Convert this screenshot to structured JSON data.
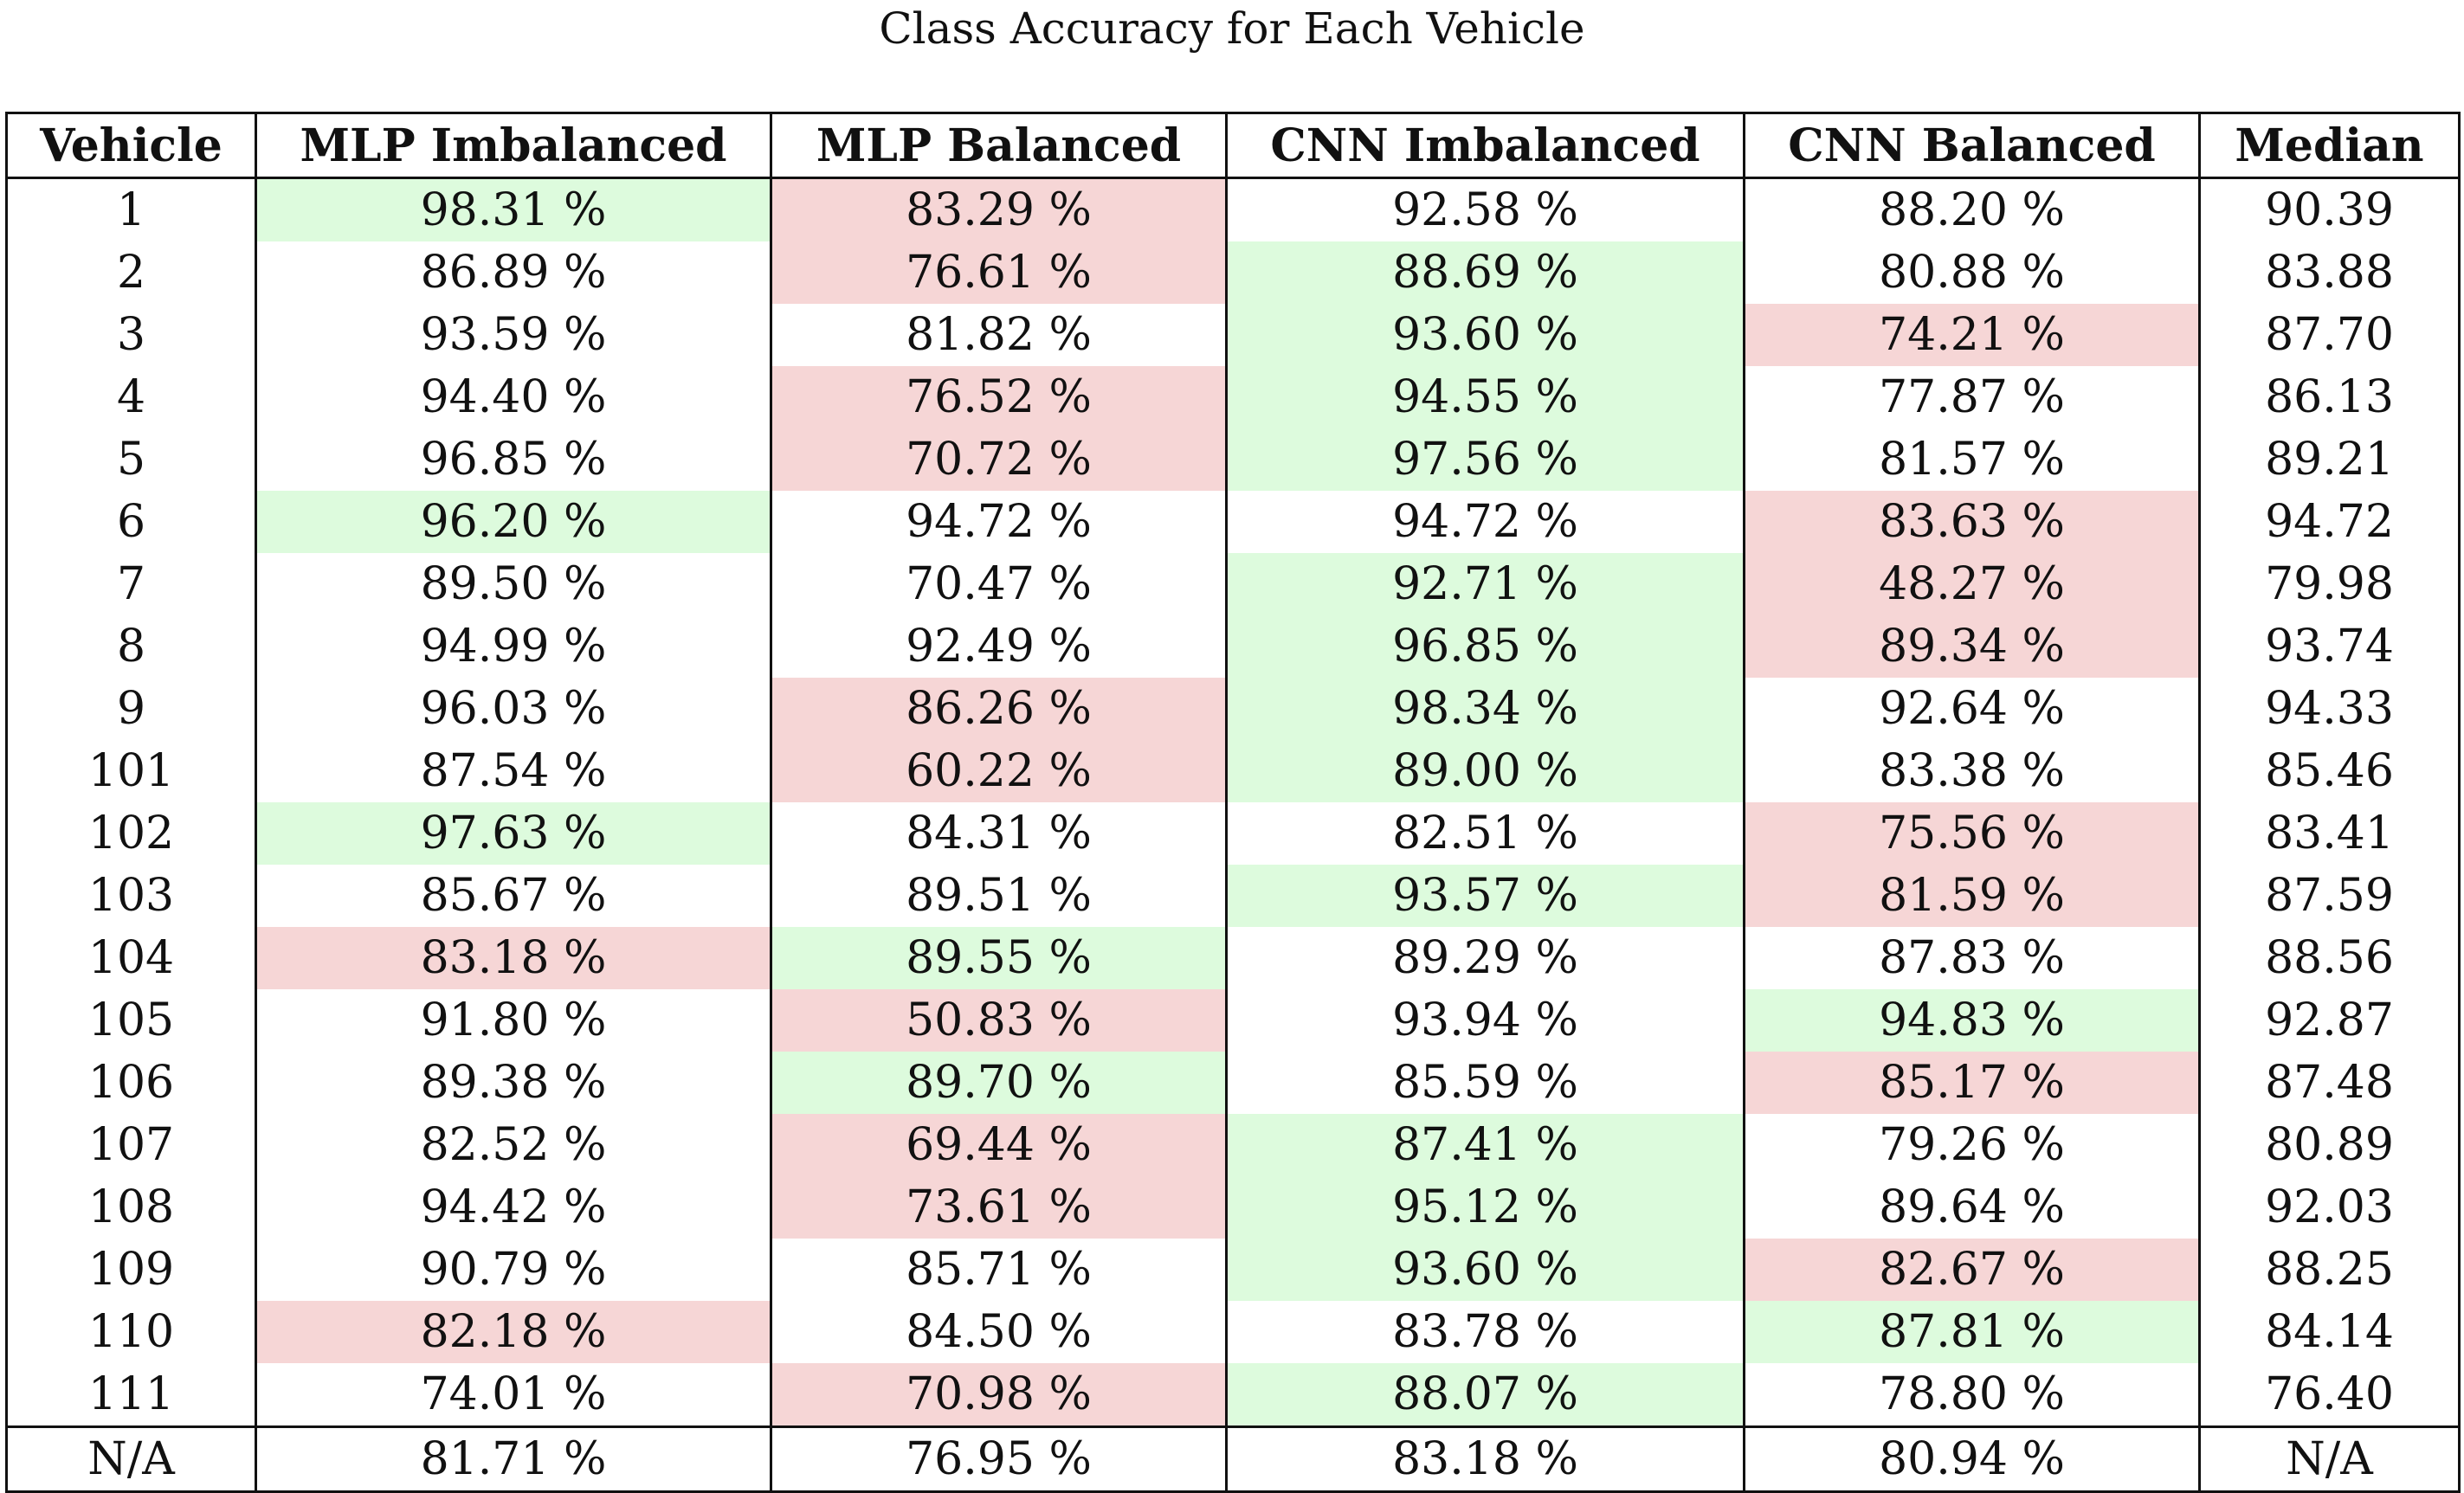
{
  "chart_data": {
    "type": "table",
    "title": "Class Accuracy for Each Vehicle",
    "columns": [
      "Vehicle",
      "MLP Imbalanced",
      "MLP Balanced",
      "CNN Imbalanced",
      "CNN Balanced",
      "Median"
    ],
    "colors": {
      "highest": "#ddfbdd",
      "lowest": "#f6d6d6"
    },
    "rows": [
      {
        "cells": [
          "1",
          "98.31 %",
          "83.29 %",
          "92.58 %",
          "88.20 %",
          "90.39"
        ],
        "hl": [
          "",
          "hi",
          "lo",
          "",
          "",
          ""
        ]
      },
      {
        "cells": [
          "2",
          "86.89 %",
          "76.61 %",
          "88.69 %",
          "80.88 %",
          "83.88"
        ],
        "hl": [
          "",
          "",
          "lo",
          "hi",
          "",
          ""
        ]
      },
      {
        "cells": [
          "3",
          "93.59 %",
          "81.82 %",
          "93.60 %",
          "74.21 %",
          "87.70"
        ],
        "hl": [
          "",
          "",
          "",
          "hi",
          "lo",
          ""
        ]
      },
      {
        "cells": [
          "4",
          "94.40 %",
          "76.52 %",
          "94.55 %",
          "77.87 %",
          "86.13"
        ],
        "hl": [
          "",
          "",
          "lo",
          "hi",
          "",
          ""
        ]
      },
      {
        "cells": [
          "5",
          "96.85 %",
          "70.72 %",
          "97.56 %",
          "81.57 %",
          "89.21"
        ],
        "hl": [
          "",
          "",
          "lo",
          "hi",
          "",
          ""
        ]
      },
      {
        "cells": [
          "6",
          "96.20 %",
          "94.72 %",
          "94.72 %",
          "83.63 %",
          "94.72"
        ],
        "hl": [
          "",
          "hi",
          "",
          "",
          "lo",
          ""
        ]
      },
      {
        "cells": [
          "7",
          "89.50 %",
          "70.47 %",
          "92.71 %",
          "48.27 %",
          "79.98"
        ],
        "hl": [
          "",
          "",
          "",
          "hi",
          "lo",
          ""
        ]
      },
      {
        "cells": [
          "8",
          "94.99 %",
          "92.49 %",
          "96.85 %",
          "89.34 %",
          "93.74"
        ],
        "hl": [
          "",
          "",
          "",
          "hi",
          "lo",
          ""
        ]
      },
      {
        "cells": [
          "9",
          "96.03 %",
          "86.26 %",
          "98.34 %",
          "92.64 %",
          "94.33"
        ],
        "hl": [
          "",
          "",
          "lo",
          "hi",
          "",
          ""
        ]
      },
      {
        "cells": [
          "101",
          "87.54 %",
          "60.22 %",
          "89.00 %",
          "83.38 %",
          "85.46"
        ],
        "hl": [
          "",
          "",
          "lo",
          "hi",
          "",
          ""
        ]
      },
      {
        "cells": [
          "102",
          "97.63 %",
          "84.31 %",
          "82.51 %",
          "75.56 %",
          "83.41"
        ],
        "hl": [
          "",
          "hi",
          "",
          "",
          "lo",
          ""
        ]
      },
      {
        "cells": [
          "103",
          "85.67 %",
          "89.51 %",
          "93.57 %",
          "81.59 %",
          "87.59"
        ],
        "hl": [
          "",
          "",
          "",
          "hi",
          "lo",
          ""
        ]
      },
      {
        "cells": [
          "104",
          "83.18 %",
          "89.55 %",
          "89.29 %",
          "87.83 %",
          "88.56"
        ],
        "hl": [
          "",
          "lo",
          "hi",
          "",
          "",
          ""
        ]
      },
      {
        "cells": [
          "105",
          "91.80 %",
          "50.83 %",
          "93.94 %",
          "94.83 %",
          "92.87"
        ],
        "hl": [
          "",
          "",
          "lo",
          "",
          "hi",
          ""
        ]
      },
      {
        "cells": [
          "106",
          "89.38 %",
          "89.70 %",
          "85.59 %",
          "85.17 %",
          "87.48"
        ],
        "hl": [
          "",
          "",
          "hi",
          "",
          "lo",
          ""
        ]
      },
      {
        "cells": [
          "107",
          "82.52 %",
          "69.44 %",
          "87.41 %",
          "79.26 %",
          "80.89"
        ],
        "hl": [
          "",
          "",
          "lo",
          "hi",
          "",
          ""
        ]
      },
      {
        "cells": [
          "108",
          "94.42 %",
          "73.61 %",
          "95.12 %",
          "89.64 %",
          "92.03"
        ],
        "hl": [
          "",
          "",
          "lo",
          "hi",
          "",
          ""
        ]
      },
      {
        "cells": [
          "109",
          "90.79 %",
          "85.71 %",
          "93.60 %",
          "82.67 %",
          "88.25"
        ],
        "hl": [
          "",
          "",
          "",
          "hi",
          "lo",
          ""
        ]
      },
      {
        "cells": [
          "110",
          "82.18 %",
          "84.50 %",
          "83.78 %",
          "87.81 %",
          "84.14"
        ],
        "hl": [
          "",
          "lo",
          "",
          "",
          "hi",
          ""
        ]
      },
      {
        "cells": [
          "111",
          "74.01 %",
          "70.98 %",
          "88.07 %",
          "78.80 %",
          "76.40"
        ],
        "hl": [
          "",
          "",
          "lo",
          "hi",
          "",
          ""
        ]
      }
    ],
    "footer": [
      "N/A",
      "81.71 %",
      "76.95 %",
      "83.18 %",
      "80.94 %",
      "N/A"
    ]
  }
}
